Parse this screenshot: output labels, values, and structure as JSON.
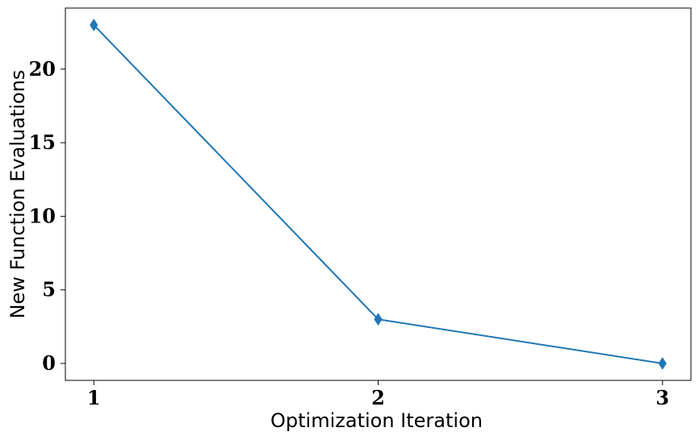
{
  "chart_data": {
    "type": "line",
    "title": "",
    "xlabel": "Optimization Iteration",
    "ylabel": "New Function Evaluations",
    "x": [
      1,
      2,
      3
    ],
    "series": [
      {
        "values": [
          23,
          3,
          0
        ],
        "color": "#1f77b4",
        "marker": "thin-diamond"
      }
    ],
    "xticks": [
      "1",
      "2",
      "3"
    ],
    "yticks": [
      "0",
      "5",
      "10",
      "15",
      "20"
    ],
    "xlim": [
      0.9,
      3.1
    ],
    "ylim": [
      -1.15,
      24.15
    ],
    "grid": false,
    "legend": "none"
  }
}
